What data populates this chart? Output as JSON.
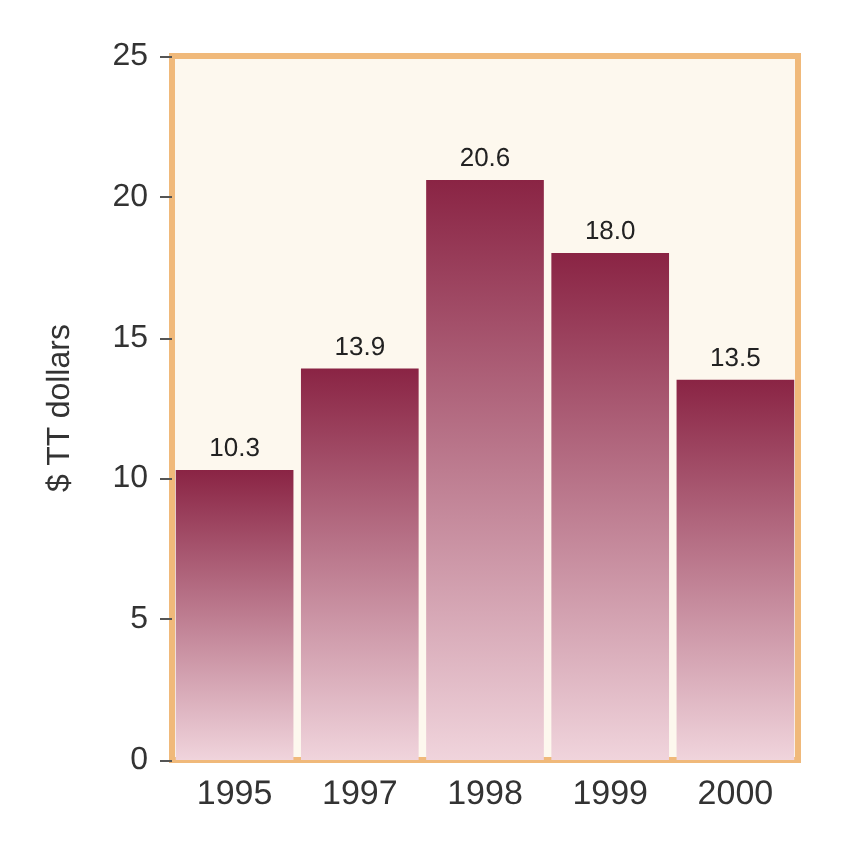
{
  "chart_data": {
    "type": "bar",
    "ylabel": "$ TT dollars",
    "categories": [
      "1995",
      "1997",
      "1998",
      "1999",
      "2000"
    ],
    "values": [
      10.3,
      13.9,
      20.6,
      18.0,
      13.5
    ],
    "value_labels": [
      "10.3",
      "13.9",
      "20.6",
      "18.0",
      "13.5"
    ],
    "color": "#8a2444",
    "ylim": [
      0,
      25
    ],
    "yticks": [
      0,
      5,
      10,
      15,
      20,
      25
    ],
    "grid": false
  }
}
